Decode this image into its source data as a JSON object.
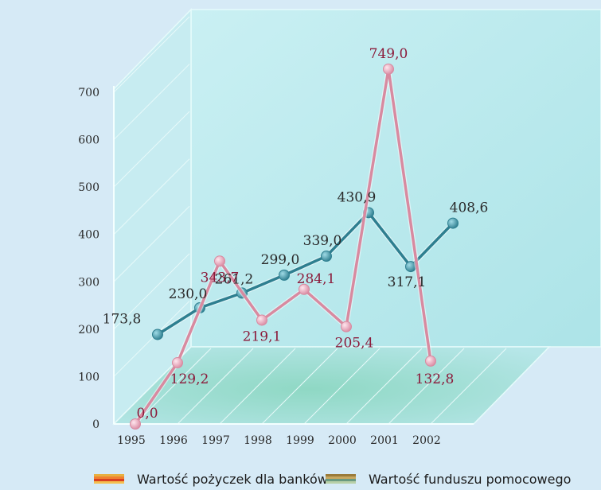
{
  "chart_data": {
    "type": "line",
    "title": "",
    "xlabel": "",
    "ylabel": "",
    "x": [
      "1995",
      "1996",
      "1997",
      "1998",
      "1999",
      "2000",
      "2001",
      "2002"
    ],
    "y_ticks": [
      "0",
      "100",
      "200",
      "300",
      "400",
      "500",
      "600",
      "700"
    ],
    "ylim": [
      0,
      700
    ],
    "grid": true,
    "legend_position": "bottom",
    "series": [
      {
        "name": "Wartość pożyczek dla banków",
        "color": "#e8a4b8",
        "values": [
          0.0,
          129.2,
          343.7,
          219.1,
          284.1,
          205.4,
          749.0,
          132.8
        ],
        "labels": [
          "0,0",
          "129,2",
          "343,7",
          "219,1",
          "284,1",
          "205,4",
          "749,0",
          "132,8"
        ]
      },
      {
        "name": "Wartość funduszu pomocowego",
        "color": "#2e7f90",
        "values": [
          173.8,
          230.0,
          261.2,
          299.0,
          339.0,
          430.9,
          317.1,
          408.6
        ],
        "labels": [
          "173,8",
          "230,0",
          "261,2",
          "299,0",
          "339,0",
          "430,9",
          "317,1",
          "408,6"
        ]
      }
    ]
  },
  "legend": {
    "item_1": "Wartość pożyczek dla banków",
    "item_2": "Wartość funduszu pomocowego"
  },
  "colors": {
    "pink_line": "#e8a4b8",
    "pink_label": "#8b1a3a",
    "teal_line": "#2e7f90",
    "label_dark": "#2a2a2a",
    "background": "#d6eaf6",
    "wall": "#bfe9ef",
    "floor": "#a9e0d8"
  }
}
